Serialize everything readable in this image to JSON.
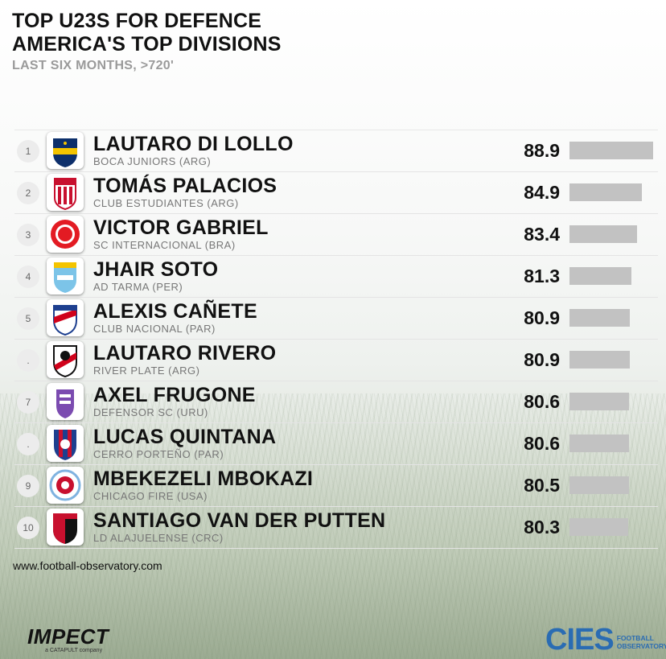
{
  "header": {
    "title_line1": "TOP U23S FOR DEFENCE",
    "title_line2": "AMERICA'S TOP DIVISIONS",
    "subtitle": "LAST SIX MONTHS, >720'"
  },
  "chart_data": {
    "type": "bar",
    "orientation": "horizontal",
    "title": "TOP U23S FOR DEFENCE AMERICA'S TOP DIVISIONS",
    "subtitle": "LAST SIX MONTHS, >720'",
    "xlim": [
      60,
      88.9
    ],
    "rows": [
      {
        "rank": "1",
        "name": "LAUTARO DI LOLLO",
        "club": "BOCA JUNIORS (ARG)",
        "value": "88.9",
        "badge": "boca-juniors-crest-icon"
      },
      {
        "rank": "2",
        "name": "TOMÁS PALACIOS",
        "club": "CLUB ESTUDIANTES (ARG)",
        "value": "84.9",
        "badge": "estudiantes-crest-icon"
      },
      {
        "rank": "3",
        "name": "VICTOR GABRIEL",
        "club": "SC INTERNACIONAL (BRA)",
        "value": "83.4",
        "badge": "internacional-crest-icon"
      },
      {
        "rank": "4",
        "name": "JHAIR SOTO",
        "club": "AD TARMA (PER)",
        "value": "81.3",
        "badge": "ad-tarma-crest-icon"
      },
      {
        "rank": "5",
        "name": "ALEXIS CAÑETE",
        "club": "CLUB NACIONAL (PAR)",
        "value": "80.9",
        "badge": "club-nacional-crest-icon"
      },
      {
        "rank": ".",
        "name": "LAUTARO RIVERO",
        "club": "RIVER PLATE (ARG)",
        "value": "80.9",
        "badge": "river-plate-crest-icon"
      },
      {
        "rank": "7",
        "name": "AXEL FRUGONE",
        "club": "DEFENSOR SC (URU)",
        "value": "80.6",
        "badge": "defensor-sc-crest-icon"
      },
      {
        "rank": ".",
        "name": "LUCAS QUINTANA",
        "club": "CERRO PORTEÑO (PAR)",
        "value": "80.6",
        "badge": "cerro-porteno-crest-icon"
      },
      {
        "rank": "9",
        "name": "MBEKEZELI MBOKAZI",
        "club": "CHICAGO FIRE (USA)",
        "value": "80.5",
        "badge": "chicago-fire-crest-icon"
      },
      {
        "rank": "10",
        "name": "SANTIAGO VAN DER PUTTEN",
        "club": "LD ALAJUELENSE (CRC)",
        "value": "80.3",
        "badge": "alajuelense-crest-icon"
      }
    ],
    "bar_color": "#c2c2c2"
  },
  "footer": {
    "url": "www.football-observatory.com",
    "impect_logo": "IMPECT",
    "impect_tagline": "a CATAPULT company",
    "cies_logo": "CIES",
    "cies_tagline_1": "FOOTBALL",
    "cies_tagline_2": "OBSERVATORY"
  }
}
